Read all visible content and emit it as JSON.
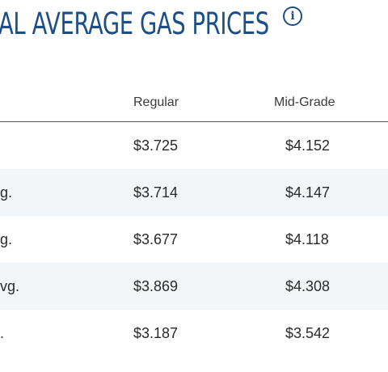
{
  "title": "AL AVERAGE GAS PRICES",
  "info_icon_glyph": "i",
  "colors": {
    "title": "#1b4f86",
    "row_stripe": "#f2f6f9",
    "text": "#2a2a2a",
    "divider": "#555555"
  },
  "table": {
    "headers": {
      "label": "",
      "regular": "Regular",
      "mid_grade": "Mid-Grade"
    },
    "rows": [
      {
        "label": "",
        "regular": "$3.725",
        "mid_grade": "$4.152"
      },
      {
        "label": "g.",
        "regular": "$3.714",
        "mid_grade": "$4.147"
      },
      {
        "label": "g.",
        "regular": "$3.677",
        "mid_grade": "$4.118"
      },
      {
        "label": "vg.",
        "regular": "$3.869",
        "mid_grade": "$4.308"
      },
      {
        "label": ".",
        "regular": "$3.187",
        "mid_grade": "$3.542"
      }
    ]
  }
}
